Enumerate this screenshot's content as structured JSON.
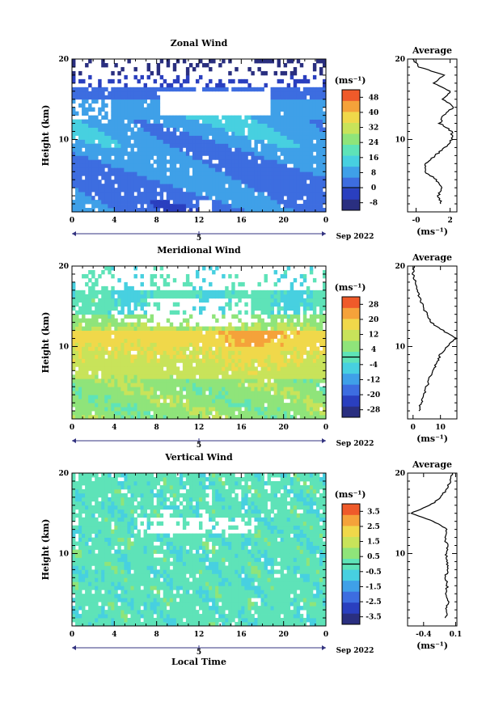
{
  "figure": {
    "xlabel": "Local Time",
    "date_label": "Sep 2022",
    "day_label": "5",
    "unit_label": "(ms⁻¹)",
    "ylabel": "Height (km)",
    "average_title": "Average"
  },
  "chart_data": [
    {
      "type": "heatmap",
      "title": "Zonal Wind",
      "ylabel": "Height (km)",
      "xlabel": "Local Time",
      "x_ticks": [
        "0",
        "4",
        "8",
        "12",
        "16",
        "20",
        "0"
      ],
      "xlim": [
        0,
        24
      ],
      "y_ticks": [
        "10",
        "20"
      ],
      "ylim": [
        1,
        20
      ],
      "colorbar": {
        "label": "(ms⁻¹)",
        "ticks": [
          "48",
          "40",
          "32",
          "24",
          "16",
          "8",
          "0",
          "-8"
        ],
        "range": [
          -12,
          52
        ],
        "colors": [
          "#2a2f80",
          "#2a3fbf",
          "#3d6de0",
          "#3fa0e8",
          "#47d0e0",
          "#5ee3b8",
          "#8fe47a",
          "#c8e35a",
          "#f0d84a",
          "#f5a23a",
          "#ef5a2a"
        ]
      },
      "profile": {
        "title": "Average",
        "xlabel": "(ms⁻¹)",
        "x_ticks": [
          "-0",
          "2"
        ],
        "xlim": [
          -0.5,
          2.4
        ],
        "y_ticks": [
          "10",
          "20"
        ],
        "heights": [
          2,
          3,
          4,
          5,
          6,
          7,
          8,
          9,
          10,
          11,
          12,
          13,
          14,
          15,
          16,
          17,
          18,
          19,
          20
        ],
        "values": [
          1.5,
          1.3,
          1.5,
          1.2,
          0.5,
          0.6,
          1.1,
          1.7,
          2.1,
          2.1,
          1.4,
          1.6,
          2.2,
          1.6,
          2.0,
          1.0,
          1.6,
          0.2,
          -0.2
        ]
      }
    },
    {
      "type": "heatmap",
      "title": "Meridional Wind",
      "ylabel": "Height (km)",
      "xlabel": "Local Time",
      "x_ticks": [
        "0",
        "4",
        "8",
        "12",
        "16",
        "20",
        "0"
      ],
      "xlim": [
        0,
        24
      ],
      "y_ticks": [
        "10",
        "20"
      ],
      "ylim": [
        1,
        20
      ],
      "colorbar": {
        "label": "(ms⁻¹)",
        "ticks": [
          "28",
          "20",
          "12",
          "4",
          "-4",
          "-12",
          "-20",
          "-28"
        ],
        "range": [
          -32,
          32
        ],
        "colors": [
          "#2a2f80",
          "#2a3fbf",
          "#3d6de0",
          "#3fa0e8",
          "#47d0e0",
          "#5ee3b8",
          "#8fe47a",
          "#c8e35a",
          "#f0d84a",
          "#f5a23a",
          "#ef5a2a"
        ]
      },
      "profile": {
        "title": "Average",
        "xlabel": "(ms⁻¹)",
        "x_ticks": [
          "0",
          "10"
        ],
        "xlim": [
          -2,
          16
        ],
        "y_ticks": [
          "10",
          "20"
        ],
        "heights": [
          2,
          3,
          4,
          5,
          6,
          7,
          8,
          9,
          10,
          11,
          12,
          13,
          14,
          15,
          16,
          17,
          18,
          19,
          20
        ],
        "values": [
          2.0,
          3.0,
          4.0,
          5.0,
          6.0,
          7.5,
          8.5,
          10.0,
          12.5,
          15.5,
          11.0,
          6.5,
          5.0,
          3.5,
          2.5,
          1.5,
          1.0,
          0.0,
          0.5
        ]
      }
    },
    {
      "type": "heatmap",
      "title": "Vertical Wind",
      "ylabel": "Height (km)",
      "xlabel": "Local Time",
      "x_ticks": [
        "0",
        "4",
        "8",
        "12",
        "16",
        "20",
        "0"
      ],
      "xlim": [
        0,
        24
      ],
      "y_ticks": [
        "10",
        "20"
      ],
      "ylim": [
        1,
        20
      ],
      "colorbar": {
        "label": "(ms⁻¹)",
        "ticks": [
          "3.5",
          "2.5",
          "1.5",
          "0.5",
          "-0.5",
          "-1.5",
          "-2.5",
          "-3.5"
        ],
        "range": [
          -4,
          4
        ],
        "colors": [
          "#2a2f80",
          "#2a3fbf",
          "#3d6de0",
          "#3fa0e8",
          "#47d0e0",
          "#5ee3b8",
          "#8fe47a",
          "#c8e35a",
          "#f0d84a",
          "#f5a23a",
          "#ef5a2a"
        ]
      },
      "profile": {
        "title": "Average",
        "xlabel": "(ms⁻¹)",
        "x_ticks": [
          "-0.4",
          "0.1"
        ],
        "xlim": [
          -0.65,
          0.12
        ],
        "y_ticks": [
          "10",
          "20"
        ],
        "heights": [
          2,
          3,
          4,
          5,
          6,
          7,
          8,
          9,
          10,
          11,
          12,
          13,
          14,
          15,
          16,
          17,
          18,
          19,
          20
        ],
        "values": [
          -0.05,
          -0.05,
          -0.02,
          -0.07,
          -0.03,
          -0.06,
          -0.02,
          -0.04,
          -0.05,
          -0.02,
          -0.08,
          -0.04,
          -0.25,
          -0.6,
          -0.3,
          -0.12,
          -0.05,
          0.02,
          0.05
        ]
      }
    }
  ]
}
